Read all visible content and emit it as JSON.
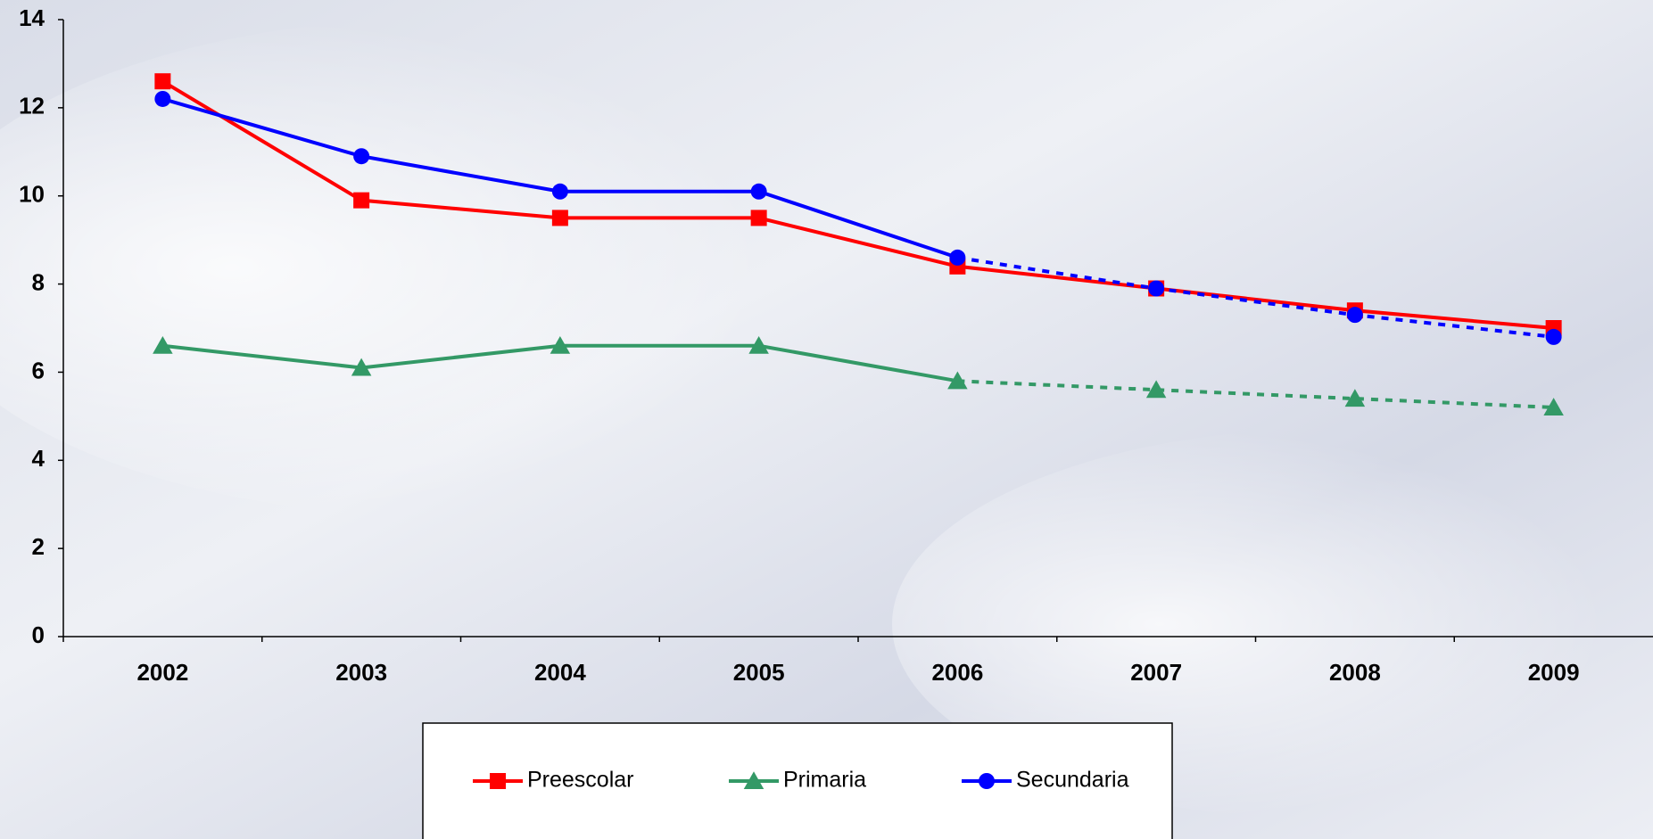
{
  "chart_data": {
    "type": "line",
    "categories": [
      "2002",
      "2003",
      "2004",
      "2005",
      "2006",
      "2007",
      "2008",
      "2009"
    ],
    "series": [
      {
        "name": "Preescolar",
        "color": "#ff0000",
        "marker": "square",
        "values": [
          12.6,
          9.9,
          9.5,
          9.5,
          8.4,
          7.9,
          7.4,
          7.0
        ]
      },
      {
        "name": "Primaria",
        "color": "#339966",
        "marker": "triangle",
        "dashed_from": 4,
        "values": [
          6.6,
          6.1,
          6.6,
          6.6,
          5.8,
          5.6,
          5.4,
          5.2
        ]
      },
      {
        "name": "Secundaria",
        "color": "#0000ff",
        "marker": "circle",
        "dashed_from": 4,
        "values": [
          12.2,
          10.9,
          10.1,
          10.1,
          8.6,
          7.9,
          7.3,
          6.8
        ]
      }
    ],
    "ylim": [
      0,
      14
    ],
    "yticks": [
      0,
      2,
      4,
      6,
      8,
      10,
      12,
      14
    ],
    "grid": false,
    "legend": "bottom"
  }
}
